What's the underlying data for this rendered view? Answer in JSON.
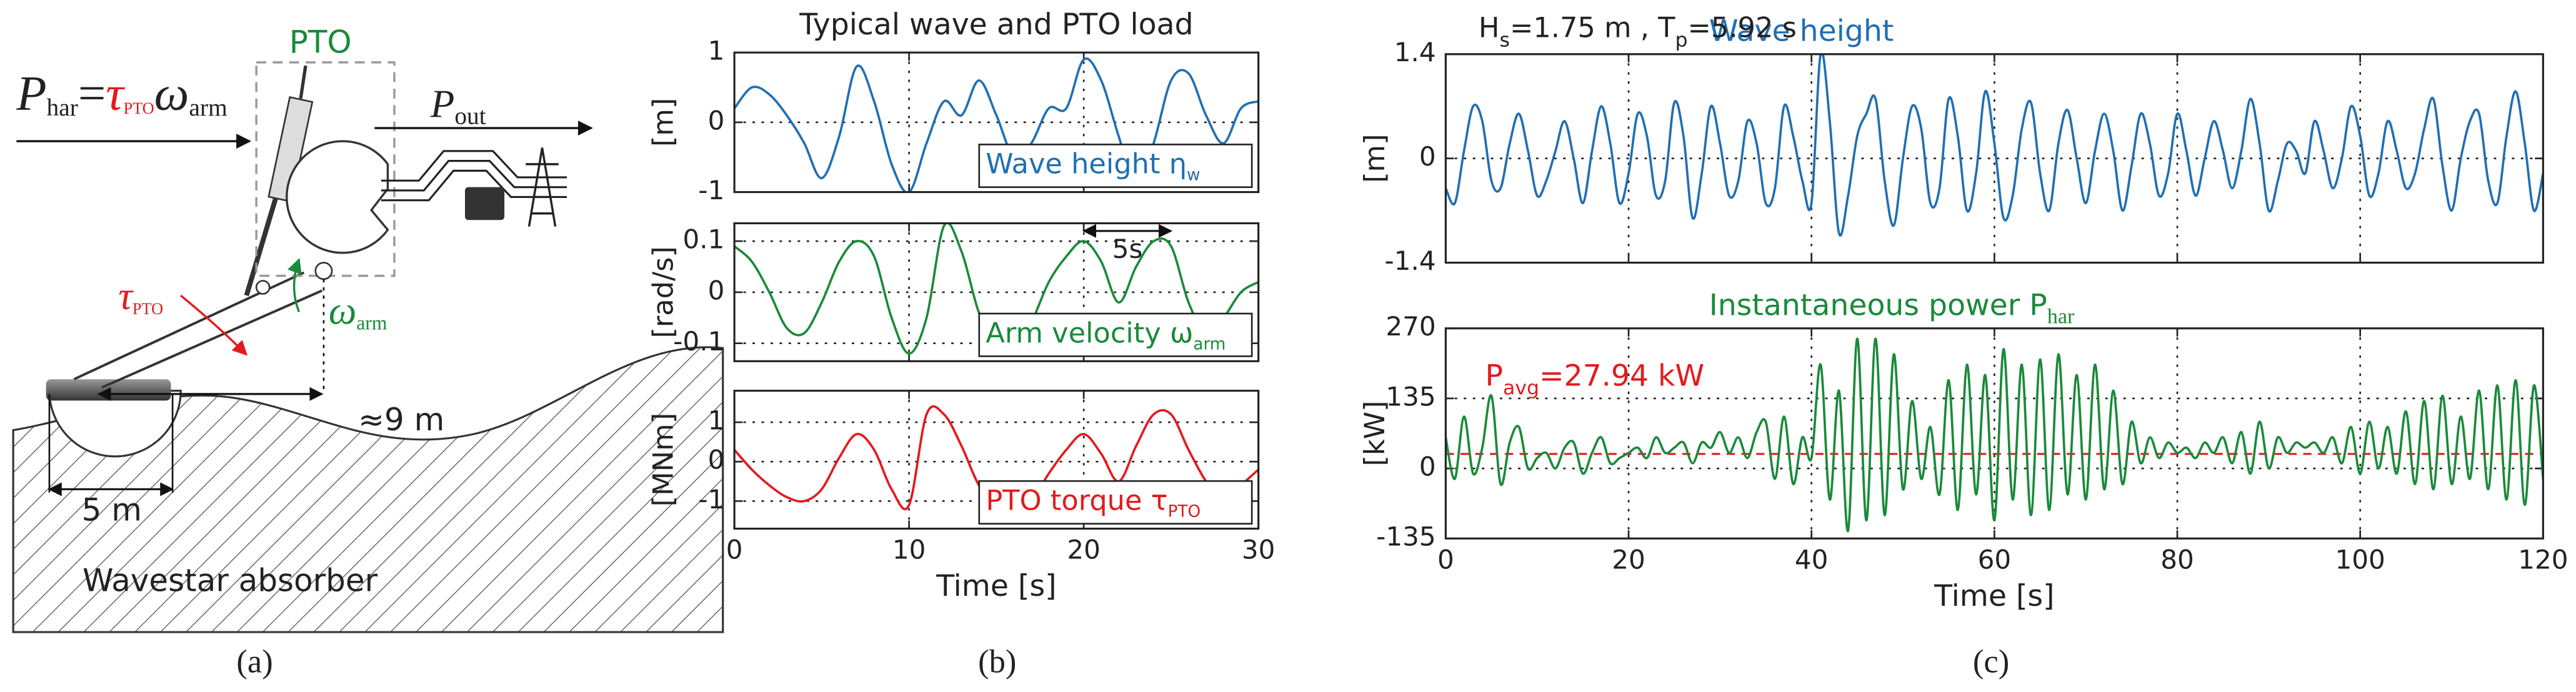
{
  "diagram": {
    "power_in": {
      "symbol": "P",
      "sub": "har",
      "equals": "=",
      "tau": "τ",
      "tau_sub": "PTO",
      "omega": "ω",
      "omega_sub": "arm"
    },
    "pto_label": "PTO",
    "power_out": {
      "symbol": "P",
      "sub": "out"
    },
    "torque": {
      "symbol": "τ",
      "sub": "PTO"
    },
    "velocity": {
      "symbol": "ω",
      "sub": "arm"
    },
    "arm_length": "≈9 m",
    "float_diameter": "5 m",
    "caption": "Wavestar absorber"
  },
  "panel_labels": [
    "(a)",
    "(b)",
    "(c)"
  ],
  "chart_data": [
    {
      "type": "line",
      "title": "Typical wave and PTO load",
      "ylabel": "[m]",
      "x": [
        0,
        1,
        2,
        3,
        4,
        5,
        6,
        7,
        8,
        9,
        10,
        11,
        12,
        13,
        14,
        15,
        16,
        17,
        18,
        19,
        20,
        21,
        22,
        23,
        24,
        25,
        26,
        27,
        28,
        29,
        30
      ],
      "xlim": [
        0,
        30
      ],
      "xticks": [
        0,
        10,
        20,
        30
      ],
      "show_xtick_labels": false,
      "ylim": [
        -1,
        1
      ],
      "yticks": [
        -1,
        0,
        1
      ],
      "grid": true,
      "legend": "lower right",
      "series": [
        {
          "name": "Wave height η",
          "name_sub": "w",
          "color": "#1f6fb4",
          "values": [
            0.2,
            0.5,
            0.4,
            0.1,
            -0.3,
            -0.8,
            -0.2,
            0.8,
            0.3,
            -0.6,
            -1.0,
            -0.3,
            0.3,
            0.1,
            0.6,
            0.1,
            -0.5,
            -0.3,
            0.2,
            0.2,
            0.9,
            0.6,
            -0.2,
            -0.9,
            -0.3,
            0.6,
            0.7,
            0.1,
            -0.3,
            0.2,
            0.3
          ]
        }
      ]
    },
    {
      "type": "line",
      "ylabel": "[rad/s]",
      "x": [
        0,
        1,
        2,
        3,
        4,
        5,
        6,
        7,
        8,
        9,
        10,
        11,
        12,
        13,
        14,
        15,
        16,
        17,
        18,
        19,
        20,
        21,
        22,
        23,
        24,
        25,
        26,
        27,
        28,
        29,
        30
      ],
      "xlim": [
        0,
        30
      ],
      "xticks": [
        0,
        10,
        20,
        30
      ],
      "show_xtick_labels": false,
      "ylim": [
        -0.135,
        0.135
      ],
      "yticks": [
        -0.1,
        0,
        0.1
      ],
      "grid": true,
      "legend": "lower right",
      "annotation": {
        "text": "5s",
        "span": [
          20,
          25
        ],
        "y": 0.12
      },
      "series": [
        {
          "name": "Arm velocity ω",
          "name_sub": "arm",
          "color": "#1a8a3a",
          "values": [
            0.09,
            0.06,
            0.0,
            -0.07,
            -0.08,
            -0.02,
            0.06,
            0.1,
            0.07,
            -0.05,
            -0.12,
            -0.05,
            0.13,
            0.08,
            -0.04,
            -0.1,
            -0.12,
            -0.06,
            0.02,
            0.07,
            0.1,
            0.06,
            -0.02,
            0.05,
            0.1,
            0.09,
            -0.02,
            -0.08,
            -0.05,
            0.0,
            0.02
          ]
        }
      ]
    },
    {
      "type": "line",
      "ylabel": "[MNm]",
      "xlabel": "Time [s]",
      "x": [
        0,
        1,
        2,
        3,
        4,
        5,
        6,
        7,
        8,
        9,
        10,
        11,
        12,
        13,
        14,
        15,
        16,
        17,
        18,
        19,
        20,
        21,
        22,
        23,
        24,
        25,
        26,
        27,
        28,
        29,
        30
      ],
      "xlim": [
        0,
        30
      ],
      "xticks": [
        0,
        10,
        20,
        30
      ],
      "show_xtick_labels": true,
      "ylim": [
        -1.7,
        1.8
      ],
      "yticks": [
        -1,
        0,
        1
      ],
      "grid": true,
      "legend": "lower right",
      "series": [
        {
          "name": "PTO torque τ",
          "name_sub": "PTO",
          "color": "#e41a1c",
          "values": [
            0.3,
            -0.2,
            -0.6,
            -0.9,
            -1.0,
            -0.7,
            0.1,
            0.7,
            0.3,
            -0.7,
            -1.1,
            1.2,
            1.2,
            0.4,
            -0.6,
            -1.1,
            -1.2,
            -1.0,
            -0.3,
            0.3,
            0.7,
            0.2,
            -0.5,
            0.4,
            1.2,
            1.2,
            0.3,
            -0.5,
            -1.0,
            -0.6,
            -0.2
          ]
        }
      ]
    },
    {
      "type": "line",
      "ylabel": "[m]",
      "annotation": {
        "parts": [
          {
            "text": "H"
          },
          {
            "text": "s",
            "sub": true
          },
          {
            "text": "=1.75 m , T"
          },
          {
            "text": "p",
            "sub": true
          },
          {
            "text": "=5.92 s"
          }
        ]
      },
      "x": [
        0,
        1,
        2,
        3,
        4,
        5,
        6,
        7,
        8,
        9,
        10,
        11,
        12,
        13,
        14,
        15,
        16,
        17,
        18,
        19,
        20,
        21,
        22,
        23,
        24,
        25,
        26,
        27,
        28,
        29,
        30,
        31,
        32,
        33,
        34,
        35,
        36,
        37,
        38,
        39,
        40,
        41,
        42,
        43,
        44,
        45,
        46,
        47,
        48,
        49,
        50,
        51,
        52,
        53,
        54,
        55,
        56,
        57,
        58,
        59,
        60,
        61,
        62,
        63,
        64,
        65,
        66,
        67,
        68,
        69,
        70,
        71,
        72,
        73,
        74,
        75,
        76,
        77,
        78,
        79,
        80,
        81,
        82,
        83,
        84,
        85,
        86,
        87,
        88,
        89,
        90,
        91,
        92,
        93,
        94,
        95,
        96,
        97,
        98,
        99,
        100,
        101,
        102,
        103,
        104,
        105,
        106,
        107,
        108,
        109,
        110,
        111,
        112,
        113,
        114,
        115,
        116,
        117,
        118,
        119,
        120
      ],
      "xlim": [
        0,
        120
      ],
      "xticks": [
        0,
        20,
        40,
        60,
        80,
        100,
        120
      ],
      "show_xtick_labels": false,
      "ylim": [
        -1.4,
        1.4
      ],
      "yticks": [
        -1.4,
        0,
        1.4
      ],
      "grid": true,
      "legend": "top",
      "series": [
        {
          "name": "Wave height",
          "color": "#1f6fb4",
          "values": [
            -0.4,
            -0.6,
            0.1,
            0.7,
            0.5,
            -0.3,
            -0.4,
            0.2,
            0.6,
            0.1,
            -0.5,
            -0.3,
            0.1,
            0.5,
            0.0,
            -0.6,
            0.1,
            0.7,
            0.2,
            -0.6,
            -0.2,
            0.6,
            0.3,
            -0.5,
            -0.3,
            0.75,
            0.3,
            -0.8,
            -0.2,
            0.7,
            0.2,
            -0.5,
            -0.3,
            0.5,
            0.2,
            -0.6,
            -0.4,
            0.7,
            0.3,
            -0.3,
            -0.6,
            1.4,
            0.5,
            -1.0,
            -0.5,
            0.3,
            0.6,
            0.8,
            -0.3,
            -0.9,
            0.0,
            0.7,
            0.4,
            -0.6,
            -0.4,
            0.8,
            0.3,
            -0.7,
            -0.2,
            0.9,
            0.2,
            -0.8,
            -0.5,
            0.4,
            0.75,
            -0.2,
            -0.7,
            0.2,
            0.65,
            0.0,
            -0.6,
            0.1,
            0.6,
            0.1,
            -0.7,
            -0.1,
            0.6,
            0.2,
            -0.5,
            -0.2,
            0.6,
            0.1,
            -0.5,
            0.0,
            0.5,
            0.1,
            -0.4,
            0.1,
            0.8,
            0.2,
            -0.7,
            -0.3,
            0.2,
            0.1,
            -0.2,
            0.5,
            0.1,
            -0.4,
            0.0,
            0.7,
            0.3,
            -0.5,
            -0.2,
            0.5,
            0.1,
            -0.4,
            -0.2,
            0.4,
            0.8,
            -0.1,
            -0.7,
            0.0,
            0.5,
            0.6,
            -0.3,
            -0.6,
            0.3,
            0.9,
            0.2,
            -0.7,
            -0.2
          ]
        }
      ]
    },
    {
      "type": "line",
      "ylabel": "[kW]",
      "xlabel": "Time [s]",
      "x": [
        0,
        1,
        2,
        3,
        4,
        5,
        6,
        7,
        8,
        9,
        10,
        11,
        12,
        13,
        14,
        15,
        16,
        17,
        18,
        19,
        20,
        21,
        22,
        23,
        24,
        25,
        26,
        27,
        28,
        29,
        30,
        31,
        32,
        33,
        34,
        35,
        36,
        37,
        38,
        39,
        40,
        41,
        42,
        43,
        44,
        45,
        46,
        47,
        48,
        49,
        50,
        51,
        52,
        53,
        54,
        55,
        56,
        57,
        58,
        59,
        60,
        61,
        62,
        63,
        64,
        65,
        66,
        67,
        68,
        69,
        70,
        71,
        72,
        73,
        74,
        75,
        76,
        77,
        78,
        79,
        80,
        81,
        82,
        83,
        84,
        85,
        86,
        87,
        88,
        89,
        90,
        91,
        92,
        93,
        94,
        95,
        96,
        97,
        98,
        99,
        100,
        101,
        102,
        103,
        104,
        105,
        106,
        107,
        108,
        109,
        110,
        111,
        112,
        113,
        114,
        115,
        116,
        117,
        118,
        119,
        120
      ],
      "xlim": [
        0,
        120
      ],
      "xticks": [
        0,
        20,
        40,
        60,
        80,
        100,
        120
      ],
      "show_xtick_labels": true,
      "ylim": [
        -135,
        270
      ],
      "yticks": [
        -135,
        0,
        135,
        270
      ],
      "grid": true,
      "legend": "top",
      "reference_line": {
        "value": 27.94,
        "color": "#e41a1c",
        "label": [
          {
            "text": "P"
          },
          {
            "text": "avg",
            "sub": true
          },
          {
            "text": "=27.94 kW"
          }
        ]
      },
      "series": [
        {
          "name": "Instantaneous power P",
          "name_sub": "har",
          "color": "#1a8a3a",
          "values": [
            60,
            -20,
            100,
            -10,
            40,
            140,
            -30,
            50,
            80,
            0,
            20,
            30,
            0,
            40,
            50,
            -10,
            30,
            60,
            10,
            20,
            30,
            40,
            20,
            60,
            30,
            40,
            50,
            10,
            50,
            40,
            70,
            30,
            60,
            20,
            70,
            90,
            -20,
            100,
            -30,
            60,
            20,
            200,
            -60,
            150,
            -120,
            250,
            -100,
            250,
            -90,
            220,
            -40,
            130,
            -20,
            80,
            -50,
            170,
            -80,
            200,
            -50,
            180,
            -100,
            230,
            -60,
            200,
            -90,
            210,
            -80,
            220,
            -50,
            180,
            -60,
            200,
            -40,
            150,
            -30,
            90,
            10,
            60,
            20,
            50,
            30,
            40,
            20,
            50,
            30,
            60,
            10,
            70,
            -10,
            90,
            0,
            60,
            30,
            50,
            40,
            50,
            30,
            60,
            10,
            80,
            -10,
            90,
            0,
            80,
            -10,
            110,
            -30,
            130,
            -40,
            140,
            -30,
            100,
            -20,
            150,
            -40,
            160,
            -60,
            170,
            -70,
            160,
            -20
          ]
        }
      ]
    }
  ]
}
